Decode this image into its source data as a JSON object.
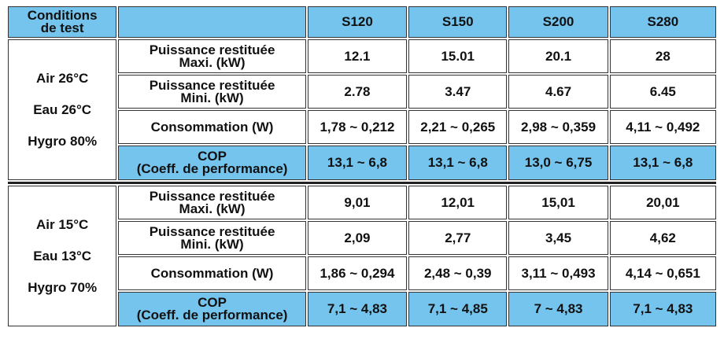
{
  "header": {
    "conditions": [
      "Conditions",
      "de test"
    ],
    "models": [
      "S120",
      "S150",
      "S200",
      "S280"
    ]
  },
  "groups": [
    {
      "conditions": [
        "Air  26°C",
        "Eau  26°C",
        "Hygro 80%"
      ],
      "rows": [
        {
          "label": [
            "Puissance restituée",
            "Maxi. (kW)"
          ],
          "values": [
            "12.1",
            "15.01",
            "20.1",
            "28"
          ]
        },
        {
          "label": [
            "Puissance restituée",
            "Mini. (kW)"
          ],
          "values": [
            "2.78",
            "3.47",
            "4.67",
            "6.45"
          ]
        },
        {
          "label": [
            "Consommation (W)"
          ],
          "values": [
            "1,78 ~ 0,212",
            "2,21 ~ 0,265",
            "2,98 ~ 0,359",
            "4,11 ~ 0,492"
          ]
        },
        {
          "label": [
            "COP",
            "(Coeff. de performance)"
          ],
          "values": [
            "13,1 ~ 6,8",
            "13,1 ~ 6,8",
            "13,0 ~ 6,75",
            "13,1 ~ 6,8"
          ]
        }
      ]
    },
    {
      "conditions": [
        "Air  15°C",
        "Eau  13°C",
        "Hygro 70%"
      ],
      "rows": [
        {
          "label": [
            "Puissance restituée",
            "Maxi. (kW)"
          ],
          "values": [
            "9,01",
            "12,01",
            "15,01",
            "20,01"
          ]
        },
        {
          "label": [
            "Puissance restituée",
            "Mini. (kW)"
          ],
          "values": [
            "2,09",
            "2,77",
            "3,45",
            "4,62"
          ]
        },
        {
          "label": [
            "Consommation (W)"
          ],
          "values": [
            "1,86 ~ 0,294",
            "2,48 ~ 0,39",
            "3,11 ~ 0,493",
            "4,14 ~ 0,651"
          ]
        },
        {
          "label": [
            "COP",
            "(Coeff. de performance)"
          ],
          "values": [
            "7,1 ~ 4,83",
            "7,1 ~ 4,85",
            "7 ~ 4,83",
            "7,1 ~ 4,83"
          ]
        }
      ]
    }
  ]
}
